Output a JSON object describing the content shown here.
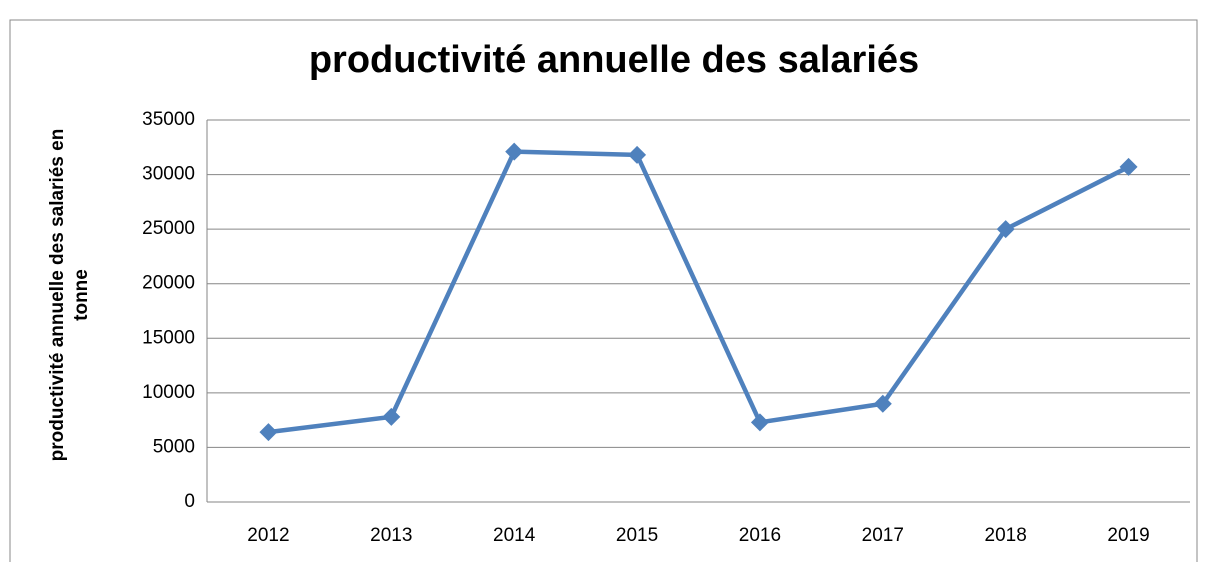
{
  "chart_data": {
    "type": "line",
    "title": "productivité annuelle des salariés",
    "ylabel": "productivité annuelle des salariés en tonne",
    "categories": [
      "2012",
      "2013",
      "2014",
      "2015",
      "2016",
      "2017",
      "2018",
      "2019"
    ],
    "series": [
      {
        "name": "productivité annuelle des salariés",
        "color": "#4f81bd",
        "values": [
          6400,
          7800,
          32100,
          31800,
          7300,
          9000,
          25000,
          30700
        ]
      }
    ],
    "ylim": [
      0,
      35000
    ],
    "yticks": [
      0,
      5000,
      10000,
      15000,
      20000,
      25000,
      30000,
      35000
    ],
    "grid": true
  }
}
